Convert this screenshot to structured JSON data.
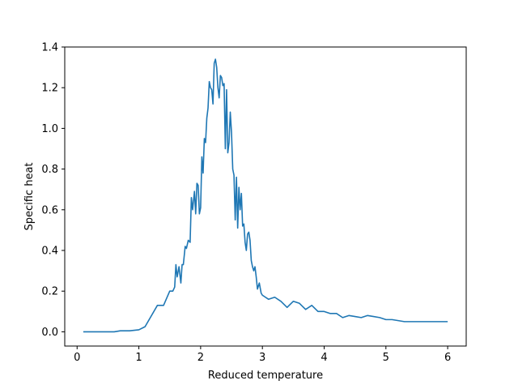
{
  "chart_data": {
    "type": "line",
    "title": "",
    "xlabel": "Reduced temperature",
    "ylabel": "Specific heat",
    "xlim": [
      -0.2,
      6.3
    ],
    "ylim": [
      -0.07,
      1.4
    ],
    "xticks": [
      0,
      1,
      2,
      3,
      4,
      5,
      6
    ],
    "yticks": [
      0.0,
      0.2,
      0.4,
      0.6,
      0.8,
      1.0,
      1.2,
      1.4
    ],
    "xtick_labels": [
      "0",
      "1",
      "2",
      "3",
      "4",
      "5",
      "6"
    ],
    "ytick_labels": [
      "0.0",
      "0.2",
      "0.4",
      "0.6",
      "0.8",
      "1.0",
      "1.2",
      "1.4"
    ],
    "grid": false,
    "series": [
      {
        "name": "specific-heat",
        "color": "#1f77b4",
        "x": [
          0.1,
          0.6,
          0.7,
          0.85,
          1.0,
          1.1,
          1.3,
          1.4,
          1.5,
          1.55,
          1.58,
          1.6,
          1.62,
          1.65,
          1.68,
          1.7,
          1.72,
          1.75,
          1.77,
          1.8,
          1.83,
          1.85,
          1.87,
          1.9,
          1.92,
          1.94,
          1.96,
          1.98,
          2.0,
          2.02,
          2.04,
          2.06,
          2.08,
          2.1,
          2.12,
          2.14,
          2.16,
          2.18,
          2.2,
          2.22,
          2.24,
          2.26,
          2.28,
          2.3,
          2.32,
          2.34,
          2.36,
          2.38,
          2.4,
          2.42,
          2.44,
          2.46,
          2.48,
          2.5,
          2.52,
          2.54,
          2.56,
          2.58,
          2.6,
          2.62,
          2.64,
          2.66,
          2.68,
          2.7,
          2.72,
          2.74,
          2.76,
          2.78,
          2.8,
          2.82,
          2.84,
          2.86,
          2.88,
          2.9,
          2.92,
          2.95,
          2.98,
          3.0,
          3.1,
          3.2,
          3.3,
          3.4,
          3.5,
          3.6,
          3.7,
          3.8,
          3.9,
          4.0,
          4.1,
          4.2,
          4.3,
          4.4,
          4.5,
          4.6,
          4.7,
          4.8,
          4.9,
          5.0,
          5.1,
          5.2,
          5.3,
          5.4,
          5.5,
          5.6,
          5.7,
          5.8,
          5.9,
          6.0
        ],
        "y": [
          0.0,
          0.0,
          0.005,
          0.005,
          0.01,
          0.025,
          0.13,
          0.13,
          0.2,
          0.2,
          0.22,
          0.33,
          0.27,
          0.32,
          0.24,
          0.33,
          0.33,
          0.42,
          0.41,
          0.45,
          0.44,
          0.66,
          0.6,
          0.69,
          0.58,
          0.73,
          0.72,
          0.58,
          0.61,
          0.86,
          0.78,
          0.95,
          0.93,
          1.05,
          1.1,
          1.23,
          1.2,
          1.19,
          1.12,
          1.32,
          1.34,
          1.3,
          1.2,
          1.15,
          1.26,
          1.25,
          1.21,
          1.22,
          0.9,
          1.19,
          0.88,
          0.93,
          1.08,
          0.98,
          0.8,
          0.77,
          0.55,
          0.76,
          0.51,
          0.71,
          0.6,
          0.68,
          0.52,
          0.53,
          0.44,
          0.4,
          0.48,
          0.49,
          0.45,
          0.35,
          0.32,
          0.3,
          0.32,
          0.27,
          0.21,
          0.24,
          0.19,
          0.18,
          0.16,
          0.17,
          0.15,
          0.12,
          0.15,
          0.14,
          0.11,
          0.13,
          0.1,
          0.1,
          0.09,
          0.09,
          0.07,
          0.08,
          0.075,
          0.07,
          0.08,
          0.075,
          0.07,
          0.06,
          0.06,
          0.055,
          0.05,
          0.05,
          0.05,
          0.05,
          0.05,
          0.05,
          0.05,
          0.05
        ]
      }
    ]
  }
}
